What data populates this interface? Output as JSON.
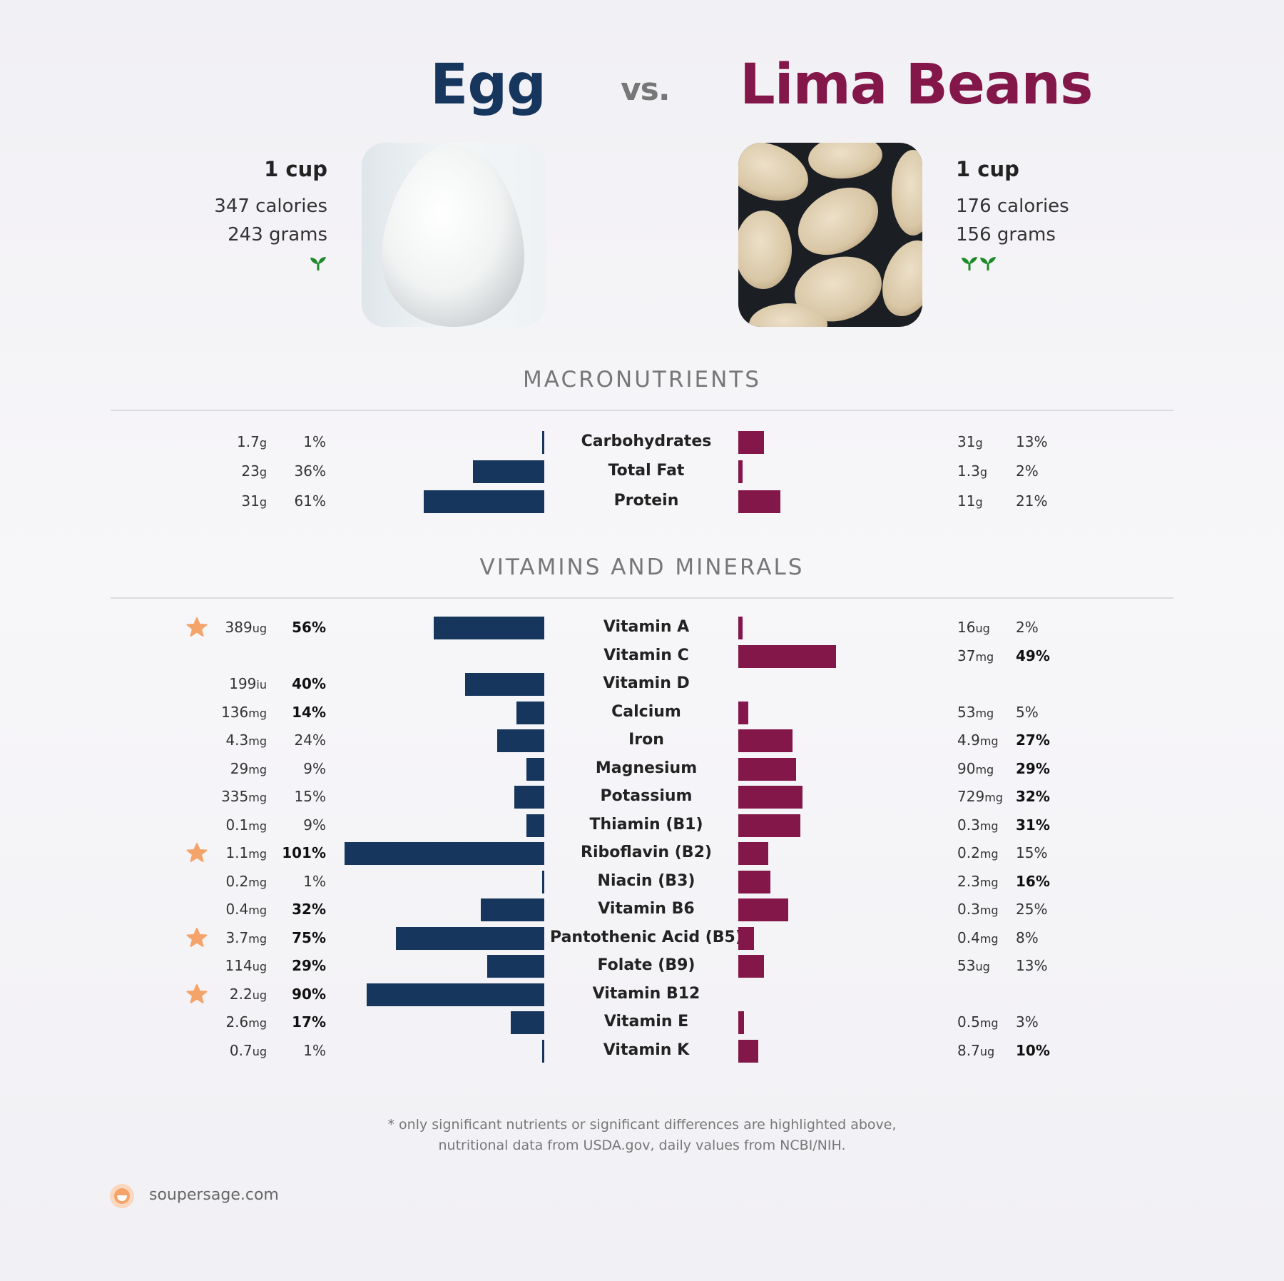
{
  "left": {
    "name": "Egg",
    "serving": "1 cup",
    "calories": "347 calories",
    "grams": "243 grams",
    "color": "#16365e",
    "badge_icon": "sprout-icon"
  },
  "vs": "vs.",
  "right": {
    "name": "Lima Beans",
    "serving": "1 cup",
    "calories": "176 calories",
    "grams": "156 grams",
    "color": "#84174a",
    "badge_icon": "sprout-icon"
  },
  "sections": {
    "macro": "MACRONUTRIENTS",
    "vitamins": "VITAMINS AND MINERALS"
  },
  "footnote": {
    "line1": "* only significant nutrients or significant differences are highlighted above,",
    "line2": "nutritional data from USDA.gov, daily values from NCBI/NIH."
  },
  "brand": {
    "name": "soupersage.com",
    "accent": "#f4a46a"
  },
  "chart_data": [
    {
      "type": "bar",
      "title": "MACRONUTRIENTS",
      "series": [
        {
          "name": "Egg"
        },
        {
          "name": "Lima Beans"
        }
      ],
      "rows": [
        {
          "label": "Carbohydrates",
          "left_amount": "1.7",
          "left_unit": "g",
          "left_pct": 1,
          "right_amount": "31",
          "right_unit": "g",
          "right_pct": 13
        },
        {
          "label": "Total Fat",
          "left_amount": "23",
          "left_unit": "g",
          "left_pct": 36,
          "right_amount": "1.3",
          "right_unit": "g",
          "right_pct": 2
        },
        {
          "label": "Protein",
          "left_amount": "31",
          "left_unit": "g",
          "left_pct": 61,
          "right_amount": "11",
          "right_unit": "g",
          "right_pct": 21
        }
      ]
    },
    {
      "type": "bar",
      "title": "VITAMINS AND MINERALS",
      "series": [
        {
          "name": "Egg"
        },
        {
          "name": "Lima Beans"
        }
      ],
      "rows": [
        {
          "label": "Vitamin A",
          "left_amount": "389",
          "left_unit": "ug",
          "left_pct": 56,
          "left_star": true,
          "left_bold": true,
          "right_amount": "16",
          "right_unit": "ug",
          "right_pct": 2
        },
        {
          "label": "Vitamin C",
          "right_amount": "37",
          "right_unit": "mg",
          "right_pct": 49,
          "right_bold": true
        },
        {
          "label": "Vitamin D",
          "left_amount": "199",
          "left_unit": "iu",
          "left_pct": 40,
          "left_bold": true
        },
        {
          "label": "Calcium",
          "left_amount": "136",
          "left_unit": "mg",
          "left_pct": 14,
          "left_bold": true,
          "right_amount": "53",
          "right_unit": "mg",
          "right_pct": 5
        },
        {
          "label": "Iron",
          "left_amount": "4.3",
          "left_unit": "mg",
          "left_pct": 24,
          "right_amount": "4.9",
          "right_unit": "mg",
          "right_pct": 27,
          "right_bold": true
        },
        {
          "label": "Magnesium",
          "left_amount": "29",
          "left_unit": "mg",
          "left_pct": 9,
          "right_amount": "90",
          "right_unit": "mg",
          "right_pct": 29,
          "right_bold": true
        },
        {
          "label": "Potassium",
          "left_amount": "335",
          "left_unit": "mg",
          "left_pct": 15,
          "right_amount": "729",
          "right_unit": "mg",
          "right_pct": 32,
          "right_bold": true
        },
        {
          "label": "Thiamin (B1)",
          "left_amount": "0.1",
          "left_unit": "mg",
          "left_pct": 9,
          "right_amount": "0.3",
          "right_unit": "mg",
          "right_pct": 31,
          "right_bold": true
        },
        {
          "label": "Riboflavin (B2)",
          "left_amount": "1.1",
          "left_unit": "mg",
          "left_pct": 101,
          "left_star": true,
          "left_bold": true,
          "right_amount": "0.2",
          "right_unit": "mg",
          "right_pct": 15
        },
        {
          "label": "Niacin (B3)",
          "left_amount": "0.2",
          "left_unit": "mg",
          "left_pct": 1,
          "right_amount": "2.3",
          "right_unit": "mg",
          "right_pct": 16,
          "right_bold": true
        },
        {
          "label": "Vitamin B6",
          "left_amount": "0.4",
          "left_unit": "mg",
          "left_pct": 32,
          "left_bold": true,
          "right_amount": "0.3",
          "right_unit": "mg",
          "right_pct": 25
        },
        {
          "label": "Pantothenic Acid (B5)",
          "left_amount": "3.7",
          "left_unit": "mg",
          "left_pct": 75,
          "left_star": true,
          "left_bold": true,
          "right_amount": "0.4",
          "right_unit": "mg",
          "right_pct": 8
        },
        {
          "label": "Folate (B9)",
          "left_amount": "114",
          "left_unit": "ug",
          "left_pct": 29,
          "left_bold": true,
          "right_amount": "53",
          "right_unit": "ug",
          "right_pct": 13
        },
        {
          "label": "Vitamin B12",
          "left_amount": "2.2",
          "left_unit": "ug",
          "left_pct": 90,
          "left_star": true,
          "left_bold": true
        },
        {
          "label": "Vitamin E",
          "left_amount": "2.6",
          "left_unit": "mg",
          "left_pct": 17,
          "left_bold": true,
          "right_amount": "0.5",
          "right_unit": "mg",
          "right_pct": 3
        },
        {
          "label": "Vitamin K",
          "left_amount": "0.7",
          "left_unit": "ug",
          "left_pct": 1,
          "right_amount": "8.7",
          "right_unit": "ug",
          "right_pct": 10,
          "right_bold": true
        }
      ]
    }
  ]
}
